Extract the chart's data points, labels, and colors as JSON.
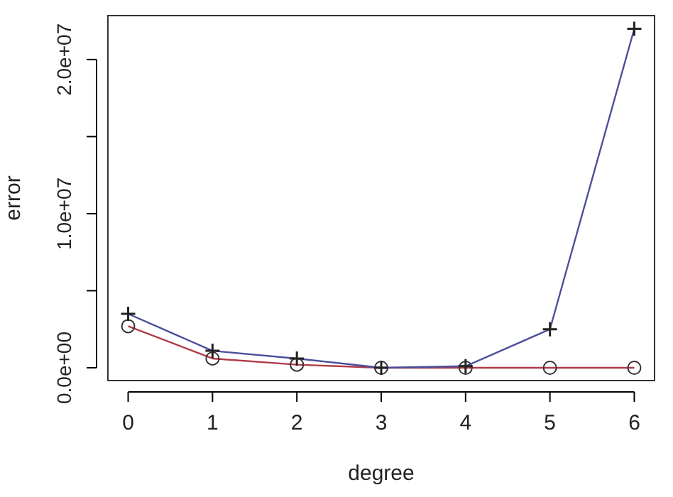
{
  "chart_data": {
    "type": "line",
    "xlabel": "degree",
    "ylabel": "error",
    "x": [
      0,
      1,
      2,
      3,
      4,
      5,
      6
    ],
    "series": [
      {
        "color": "#b03a48",
        "marker": "circle",
        "values": [
          2700000,
          600000,
          200000,
          0,
          0,
          0,
          0
        ]
      },
      {
        "color": "#4b4f9a",
        "marker": "cross",
        "values": [
          3500000,
          1100000,
          600000,
          0,
          100000,
          2500000,
          22000000
        ]
      }
    ],
    "xlim": [
      -0.24,
      6.24
    ],
    "xticks": [
      0,
      1,
      2,
      3,
      4,
      5,
      6
    ],
    "ylim": [
      -830000,
      22850000
    ],
    "yticks": [
      {
        "value": 0,
        "label": "0.0e+00"
      },
      {
        "value": 5000000,
        "label": null
      },
      {
        "value": 10000000,
        "label": "1.0e+07"
      },
      {
        "value": 15000000,
        "label": null
      },
      {
        "value": 20000000,
        "label": "2.0e+07"
      }
    ],
    "grid": false
  }
}
